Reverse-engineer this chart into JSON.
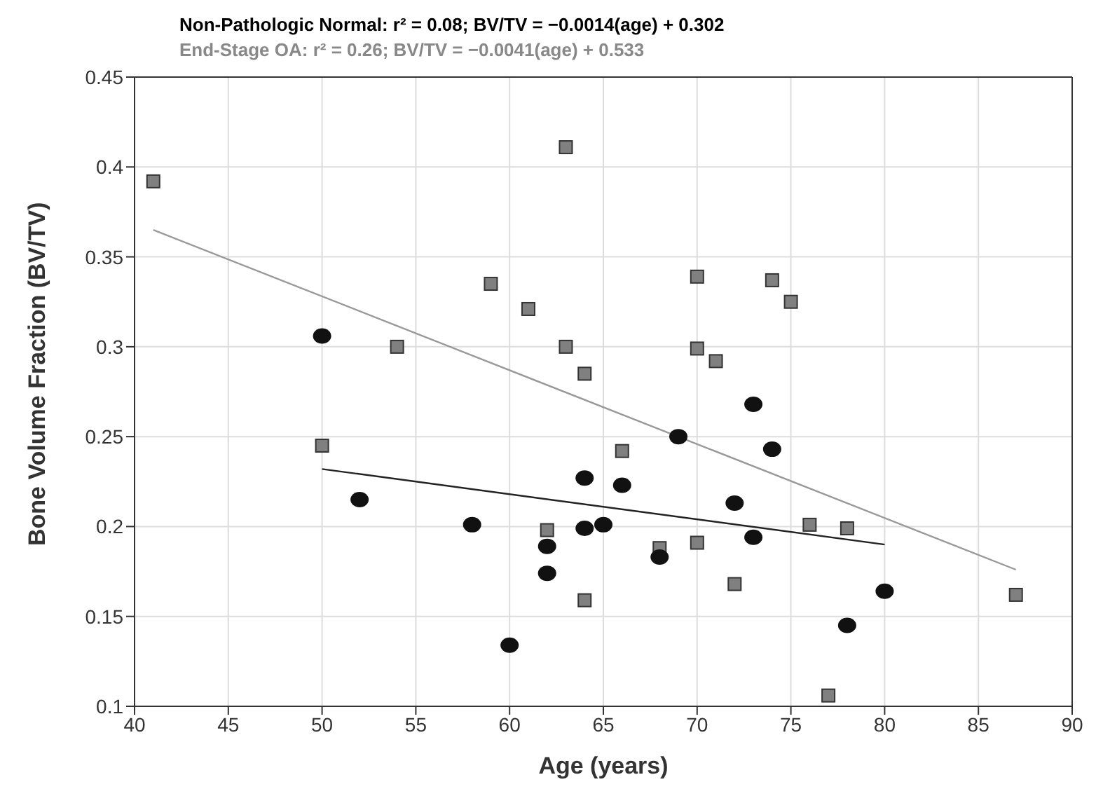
{
  "chart_data": {
    "type": "scatter",
    "title": "Non-Pathologic Normal: r² = 0.08; BV/TV = −0.0014(age) + 0.302",
    "subtitle": "End-Stage OA: r² = 0.26; BV/TV = −0.0041(age) + 0.533",
    "xlabel": "Age (years)",
    "ylabel": "Bone Volume Fraction (BV/TV)",
    "xlim": [
      40,
      90
    ],
    "xticks": [
      40,
      45,
      50,
      55,
      60,
      65,
      70,
      75,
      80,
      85,
      90
    ],
    "ylim": [
      0.1,
      0.45
    ],
    "yticks": [
      0.1,
      0.15,
      0.2,
      0.25,
      0.3,
      0.35,
      0.4,
      0.45
    ],
    "grid": true,
    "legend": false,
    "series": [
      {
        "marker": "square",
        "color": "#808080",
        "x": [
          41,
          50,
          54,
          59,
          61,
          63,
          63,
          64,
          62,
          64,
          66,
          68,
          70,
          70,
          70,
          71,
          72,
          74,
          75,
          76,
          78,
          77,
          87
        ],
        "values": [
          0.392,
          0.245,
          0.3,
          0.335,
          0.321,
          0.411,
          0.3,
          0.285,
          0.198,
          0.159,
          0.242,
          0.188,
          0.339,
          0.299,
          0.191,
          0.292,
          0.168,
          0.337,
          0.325,
          0.201,
          0.199,
          0.106,
          0.162
        ]
      },
      {
        "marker": "circle",
        "color": "#111111",
        "x": [
          50,
          52,
          58,
          60,
          62,
          62,
          64,
          64,
          65,
          66,
          68,
          69,
          72,
          73,
          73,
          74,
          78,
          80
        ],
        "values": [
          0.306,
          0.215,
          0.201,
          0.134,
          0.189,
          0.174,
          0.227,
          0.199,
          0.201,
          0.223,
          0.183,
          0.25,
          0.213,
          0.268,
          0.194,
          0.243,
          0.145,
          0.164
        ]
      },
      {
        "type": "line",
        "marker": "none",
        "color": "#999999",
        "x": [
          41,
          87
        ],
        "values": [
          0.365,
          0.176
        ]
      },
      {
        "type": "line",
        "marker": "none",
        "color": "#222222",
        "x": [
          50,
          80
        ],
        "values": [
          0.232,
          0.19
        ]
      }
    ]
  }
}
